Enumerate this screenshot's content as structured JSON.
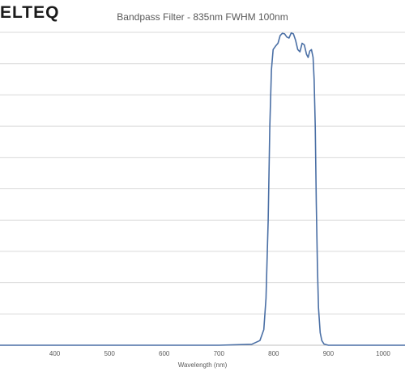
{
  "logo": {
    "text": "ELTEQ"
  },
  "chart_data": {
    "type": "line",
    "title": "Bandpass Filter - 835nm FWHM 100nm",
    "xlabel": "Wavelength (nm)",
    "ylabel": "",
    "xlim": [
      300,
      1040
    ],
    "ylim": [
      0,
      100
    ],
    "x_ticks": [
      400,
      500,
      600,
      700,
      800,
      900,
      1000
    ],
    "y_gridlines": [
      0,
      10,
      20,
      30,
      40,
      50,
      60,
      70,
      80,
      90,
      100
    ],
    "grid": true,
    "line_color": "#4a6fa5",
    "series": [
      {
        "x": [
          300,
          700,
          760,
          775,
          782,
          786,
          790,
          793,
          796,
          799,
          803,
          808,
          812,
          816,
          820,
          824,
          828,
          832,
          836,
          840,
          844,
          848,
          852,
          856,
          860,
          863,
          866,
          869,
          872,
          874,
          876,
          878,
          880,
          882,
          885,
          888,
          892,
          900,
          950,
          1040
        ],
        "y": [
          0,
          0,
          0.3,
          1.5,
          5,
          15,
          40,
          70,
          88,
          94.5,
          95.5,
          96.5,
          99,
          99.7,
          99.5,
          98.5,
          98.2,
          99.8,
          99.5,
          97.5,
          94.5,
          93.8,
          96.5,
          96,
          93,
          92,
          94,
          94.5,
          92,
          85,
          70,
          45,
          25,
          12,
          4,
          1.5,
          0.4,
          0,
          0,
          0
        ]
      }
    ]
  }
}
